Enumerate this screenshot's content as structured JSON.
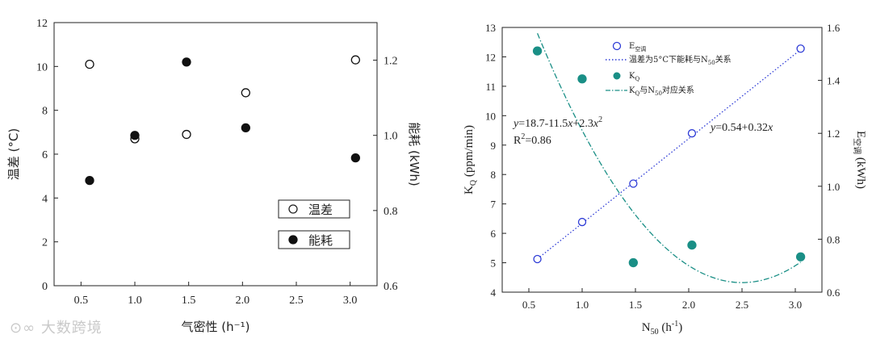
{
  "chart_data": [
    {
      "type": "scatter",
      "xlabel": "气密性 (h⁻¹)",
      "ylabel_left": "温差 (°C)",
      "ylabel_right": "能耗 (kWh)",
      "xlim": [
        0.25,
        3.25
      ],
      "ylim_left": [
        0,
        12
      ],
      "ylim_right": [
        0.6,
        1.3
      ],
      "x_ticks": [
        "0.5",
        "1.0",
        "1.5",
        "2.0",
        "2.5",
        "3.0"
      ],
      "y_ticks_left": [
        "0",
        "2",
        "4",
        "6",
        "8",
        "10",
        "12"
      ],
      "y_ticks_right": [
        "0.6",
        "0.8",
        "1.0",
        "1.2"
      ],
      "legend_position": "bottom-right",
      "series": [
        {
          "name": "温差",
          "marker": "open-circle",
          "axis": "left",
          "x": [
            0.58,
            1.0,
            1.48,
            2.03,
            3.05
          ],
          "y": [
            10.1,
            6.7,
            6.9,
            8.8,
            10.3
          ]
        },
        {
          "name": "能耗",
          "marker": "filled-circle",
          "axis": "right",
          "x": [
            0.58,
            1.0,
            1.48,
            2.03,
            3.05
          ],
          "y": [
            0.88,
            1.0,
            1.195,
            1.02,
            0.94
          ]
        }
      ]
    },
    {
      "type": "scatter",
      "xlabel": "N50 (h-1)",
      "ylabel_left": "KQ (ppm/min)",
      "ylabel_right": "E空调 (kWh)",
      "xlim": [
        0.25,
        3.25
      ],
      "ylim_left": [
        4,
        13
      ],
      "ylim_right": [
        0.6,
        1.6
      ],
      "x_ticks": [
        "0.5",
        "1.0",
        "1.5",
        "2.0",
        "2.5",
        "3.0"
      ],
      "y_ticks_left": [
        "4",
        "5",
        "6",
        "7",
        "8",
        "9",
        "10",
        "11",
        "12",
        "13"
      ],
      "y_ticks_right": [
        "0.6",
        "0.8",
        "1.0",
        "1.2",
        "1.4",
        "1.6"
      ],
      "legend_position": "top-right",
      "legend": {
        "e_label": "E",
        "e_sub": "空调",
        "e_fit": "温差为5°C下能耗与N",
        "e_fit_sub": "50",
        "e_fit_tail": "关系",
        "k_label": "K",
        "k_sub": "Q",
        "k_fit": "K",
        "k_fit_sub": "Q",
        "k_fit_mid": "与N",
        "k_fit_sub2": "50",
        "k_fit_tail": "对应关系"
      },
      "annotations": {
        "poly_eq": "y=18.7-11.5x+2.3x²",
        "r2": "R²=0.86",
        "lin_eq": "y=0.54+0.32x"
      },
      "series": [
        {
          "name": "E空调",
          "marker": "open-circle",
          "color": "#2d3bd6",
          "axis": "right",
          "x": [
            0.58,
            1.0,
            1.48,
            2.03,
            3.05
          ],
          "y": [
            0.725,
            0.865,
            1.01,
            1.2,
            1.52
          ]
        },
        {
          "name": "KQ",
          "marker": "filled-circle",
          "color": "#1a8f86",
          "axis": "left",
          "x": [
            0.58,
            1.0,
            1.48,
            2.03,
            3.05
          ],
          "y": [
            12.2,
            11.25,
            5.0,
            5.6,
            5.2
          ]
        },
        {
          "name": "温差为5°C下能耗与N50关系",
          "style": "dotted",
          "color": "#2d3bd6",
          "axis": "right",
          "fit": {
            "kind": "linear",
            "a": 0.54,
            "b": 0.32,
            "x_range": [
              0.58,
              3.05
            ]
          }
        },
        {
          "name": "KQ与N50对应关系",
          "style": "dash-dot",
          "color": "#1a8f86",
          "axis": "left",
          "fit": {
            "kind": "quadratic",
            "c0": 18.7,
            "c1": -11.5,
            "c2": 2.3,
            "x_range": [
              0.58,
              3.05
            ]
          }
        }
      ]
    }
  ],
  "watermark": "大数跨境"
}
